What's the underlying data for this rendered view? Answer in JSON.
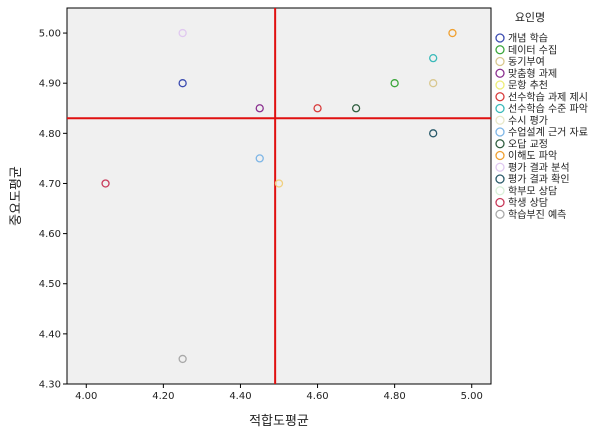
{
  "chart_data": {
    "type": "scatter",
    "xlabel": "적합도평균",
    "ylabel": "중요도평균",
    "xlim": [
      3.95,
      5.05
    ],
    "ylim": [
      4.3,
      5.05
    ],
    "xticks": [
      4.0,
      4.2,
      4.4,
      4.6,
      4.8,
      5.0
    ],
    "xtick_labels": [
      "4.00",
      "4.20",
      "4.40",
      "4.60",
      "4.80",
      "5.00"
    ],
    "yticks": [
      4.3,
      4.4,
      4.5,
      4.6,
      4.7,
      4.8,
      4.9,
      5.0
    ],
    "ytick_labels": [
      "4.30",
      "4.40",
      "4.50",
      "4.60",
      "4.70",
      "4.80",
      "4.90",
      "5.00"
    ],
    "reference_lines": {
      "x": 4.49,
      "y": 4.83,
      "color": "#e01010"
    },
    "legend_title": "요인명",
    "legend_position": "right",
    "series": [
      {
        "name": "개념 학습",
        "color": "#3b4bb0",
        "x": [
          4.25
        ],
        "y": [
          4.9
        ]
      },
      {
        "name": "데이터 수집",
        "color": "#3aa63a",
        "x": [
          4.8
        ],
        "y": [
          4.9
        ]
      },
      {
        "name": "동기부여",
        "color": "#d9c890",
        "x": [
          4.9
        ],
        "y": [
          4.9
        ]
      },
      {
        "name": "맞춤형 과제",
        "color": "#8a2f8f",
        "x": [
          4.45
        ],
        "y": [
          4.85
        ]
      },
      {
        "name": "문항 추천",
        "color": "#eeee77",
        "x": [],
        "y": []
      },
      {
        "name": "선수학습 과제 제시",
        "color": "#d83a3a",
        "x": [
          4.6
        ],
        "y": [
          4.85
        ]
      },
      {
        "name": "선수학습 수준 파악",
        "color": "#3ab9b9",
        "x": [
          4.9
        ],
        "y": [
          4.95
        ]
      },
      {
        "name": "수시 평가",
        "color": "#e8e8c8",
        "x": [],
        "y": []
      },
      {
        "name": "수업설계 근거 자료",
        "color": "#7eb6e6",
        "x": [
          4.45
        ],
        "y": [
          4.75
        ]
      },
      {
        "name": "오답 교정",
        "color": "#2f5e3f",
        "x": [
          4.7
        ],
        "y": [
          4.85
        ]
      },
      {
        "name": "이해도 파악",
        "color": "#f0a030",
        "x": [
          4.95
        ],
        "y": [
          5.0
        ]
      },
      {
        "name": "평가 결과 분석",
        "color": "#e0c8f0",
        "x": [
          4.25
        ],
        "y": [
          5.0
        ]
      },
      {
        "name": "평가 결과 확인",
        "color": "#2a5a6a",
        "x": [
          4.9
        ],
        "y": [
          4.8
        ]
      },
      {
        "name": "학부모 상담",
        "color": "#d8f0d8",
        "x": [],
        "y": []
      },
      {
        "name": "학생 상담",
        "color": "#c83a5a",
        "x": [
          4.05
        ],
        "y": [
          4.7
        ]
      },
      {
        "name": "학습부진 예측",
        "color": "#a8a8a8",
        "x": [
          4.25
        ],
        "y": [
          4.35
        ]
      }
    ],
    "extra_points": [
      {
        "color": "#f0d080",
        "x": 4.5,
        "y": 4.7
      }
    ]
  }
}
